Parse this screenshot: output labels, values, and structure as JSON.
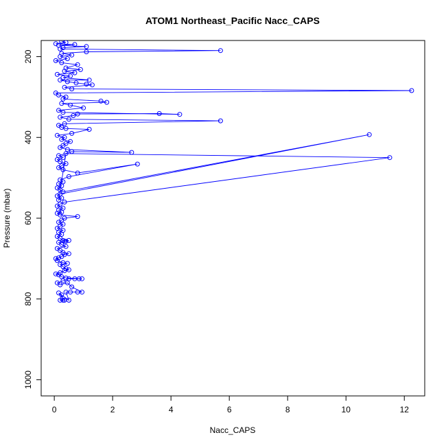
{
  "chart_data": {
    "type": "line",
    "title": "ATOM1 Northeast_Pacific Nacc_CAPS",
    "xlabel": "Nacc_CAPS",
    "ylabel": "Pressure (mbar)",
    "xlim": [
      -0.45,
      12.7
    ],
    "ylim": [
      1040,
      160
    ],
    "y_reversed": true,
    "x_ticks": [
      0,
      2,
      4,
      6,
      8,
      10,
      12
    ],
    "y_ticks": [
      200,
      400,
      600,
      800,
      1000
    ],
    "series": [
      {
        "color": "#0000ff",
        "marker": "open-circle",
        "points": [
          [
            0.3,
            803
          ],
          [
            0.25,
            790
          ],
          [
            0.2,
            803
          ],
          [
            0.35,
            803
          ],
          [
            0.15,
            785
          ],
          [
            0.5,
            803
          ],
          [
            0.4,
            783
          ],
          [
            0.55,
            783
          ],
          [
            0.8,
            783
          ],
          [
            0.95,
            783
          ],
          [
            0.6,
            770
          ],
          [
            0.45,
            760
          ],
          [
            0.2,
            765
          ],
          [
            0.1,
            760
          ],
          [
            0.3,
            755
          ],
          [
            0.5,
            750
          ],
          [
            0.7,
            750
          ],
          [
            0.85,
            750
          ],
          [
            0.95,
            750
          ],
          [
            0.4,
            748
          ],
          [
            0.25,
            745
          ],
          [
            0.15,
            740
          ],
          [
            0.05,
            738
          ],
          [
            0.2,
            735
          ],
          [
            0.35,
            730
          ],
          [
            0.5,
            728
          ],
          [
            0.4,
            725
          ],
          [
            0.3,
            720
          ],
          [
            0.2,
            715
          ],
          [
            0.45,
            712
          ],
          [
            0.3,
            710
          ],
          [
            0.1,
            705
          ],
          [
            0.05,
            700
          ],
          [
            0.15,
            698
          ],
          [
            0.25,
            695
          ],
          [
            0.35,
            690
          ],
          [
            0.5,
            688
          ],
          [
            0.3,
            685
          ],
          [
            0.2,
            680
          ],
          [
            0.1,
            675
          ],
          [
            0.4,
            670
          ],
          [
            0.25,
            665
          ],
          [
            0.15,
            660
          ],
          [
            0.35,
            657
          ],
          [
            0.5,
            655
          ],
          [
            0.4,
            657
          ],
          [
            0.3,
            655
          ],
          [
            0.2,
            650
          ],
          [
            0.1,
            645
          ],
          [
            0.25,
            640
          ],
          [
            0.15,
            635
          ],
          [
            0.3,
            630
          ],
          [
            0.1,
            625
          ],
          [
            0.2,
            620
          ],
          [
            0.3,
            615
          ],
          [
            0.15,
            610
          ],
          [
            0.25,
            605
          ],
          [
            0.35,
            600
          ],
          [
            0.8,
            596
          ],
          [
            0.2,
            592
          ],
          [
            0.1,
            588
          ],
          [
            0.25,
            585
          ],
          [
            0.15,
            580
          ],
          [
            0.3,
            575
          ],
          [
            0.1,
            570
          ],
          [
            0.2,
            565
          ],
          [
            0.35,
            560
          ],
          [
            11.5,
            450
          ],
          [
            0.4,
            440
          ],
          [
            0.15,
            555
          ],
          [
            0.25,
            550
          ],
          [
            0.1,
            545
          ],
          [
            0.2,
            540
          ],
          [
            10.8,
            393
          ],
          [
            0.3,
            535
          ],
          [
            0.2,
            530
          ],
          [
            0.1,
            525
          ],
          [
            0.25,
            520
          ],
          [
            0.15,
            515
          ],
          [
            0.3,
            510
          ],
          [
            0.2,
            505
          ],
          [
            0.5,
            497
          ],
          [
            2.85,
            466
          ],
          [
            0.8,
            488
          ],
          [
            0.3,
            480
          ],
          [
            0.15,
            475
          ],
          [
            0.25,
            470
          ],
          [
            0.4,
            465
          ],
          [
            0.2,
            460
          ],
          [
            0.1,
            455
          ],
          [
            0.3,
            450
          ],
          [
            0.15,
            445
          ],
          [
            0.6,
            435
          ],
          [
            2.65,
            437
          ],
          [
            0.45,
            430
          ],
          [
            0.2,
            425
          ],
          [
            0.3,
            420
          ],
          [
            0.4,
            415
          ],
          [
            0.55,
            410
          ],
          [
            0.25,
            405
          ],
          [
            0.35,
            400
          ],
          [
            0.1,
            395
          ],
          [
            0.6,
            390
          ],
          [
            1.2,
            380
          ],
          [
            0.4,
            378
          ],
          [
            0.25,
            375
          ],
          [
            0.15,
            370
          ],
          [
            0.35,
            366
          ],
          [
            5.7,
            359
          ],
          [
            0.5,
            355
          ],
          [
            0.2,
            350
          ],
          [
            0.65,
            346
          ],
          [
            0.8,
            342
          ],
          [
            3.6,
            341
          ],
          [
            4.3,
            343
          ],
          [
            0.3,
            338
          ],
          [
            0.15,
            333
          ],
          [
            1.0,
            327
          ],
          [
            0.55,
            320
          ],
          [
            0.25,
            316
          ],
          [
            1.8,
            313
          ],
          [
            1.6,
            310
          ],
          [
            0.3,
            305
          ],
          [
            0.4,
            300
          ],
          [
            0.15,
            295
          ],
          [
            0.05,
            290
          ],
          [
            12.25,
            284
          ],
          [
            0.6,
            280
          ],
          [
            0.35,
            276
          ],
          [
            1.3,
            270
          ],
          [
            1.1,
            268
          ],
          [
            0.75,
            265
          ],
          [
            0.45,
            262
          ],
          [
            0.2,
            258
          ],
          [
            1.2,
            258
          ],
          [
            0.3,
            252
          ],
          [
            0.55,
            248
          ],
          [
            0.1,
            244
          ],
          [
            0.7,
            240
          ],
          [
            0.35,
            236
          ],
          [
            0.9,
            232
          ],
          [
            0.4,
            228
          ],
          [
            0.8,
            220
          ],
          [
            0.25,
            215
          ],
          [
            0.05,
            210
          ],
          [
            0.45,
            205
          ],
          [
            0.2,
            200
          ],
          [
            0.6,
            196
          ],
          [
            0.25,
            192
          ],
          [
            1.1,
            188
          ],
          [
            5.7,
            185
          ],
          [
            0.2,
            181
          ],
          [
            0.3,
            178
          ],
          [
            1.1,
            175
          ],
          [
            0.15,
            172
          ],
          [
            0.7,
            170
          ],
          [
            0.05,
            168
          ],
          [
            0.4,
            165
          ],
          [
            0.25,
            162
          ]
        ]
      }
    ]
  }
}
